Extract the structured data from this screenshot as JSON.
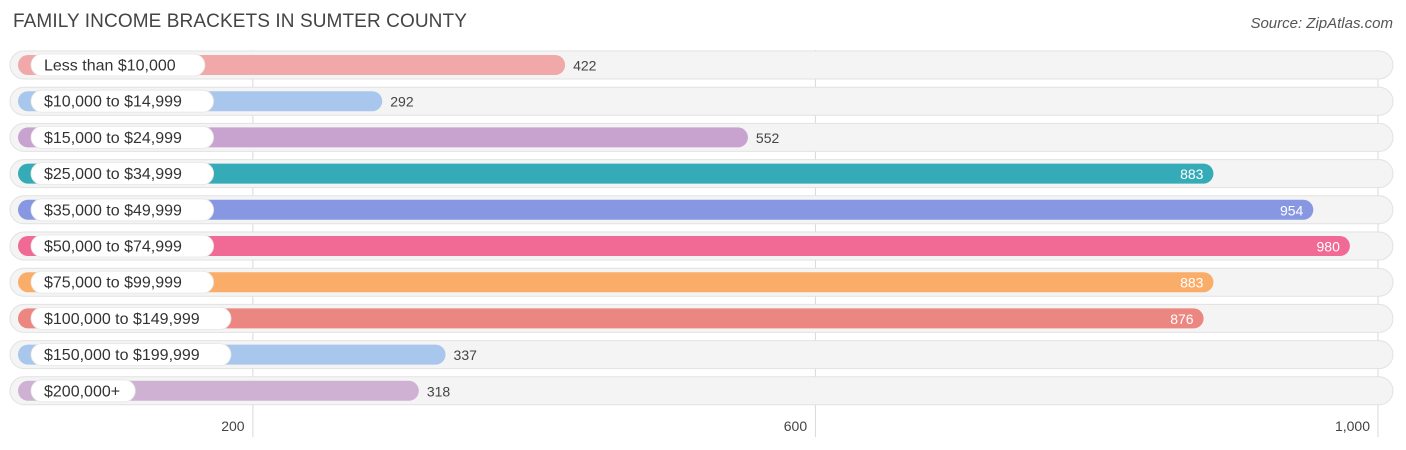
{
  "header": {
    "title": "FAMILY INCOME BRACKETS IN SUMTER COUNTY",
    "source": "Source: ZipAtlas.com"
  },
  "chart_data": {
    "type": "bar",
    "orientation": "horizontal",
    "title": "FAMILY INCOME BRACKETS IN SUMTER COUNTY",
    "xlabel": "",
    "ylabel": "",
    "xlim": [
      33,
      1000
    ],
    "grid": true,
    "categories": [
      "Less than $10,000",
      "$10,000 to $14,999",
      "$15,000 to $24,999",
      "$25,000 to $34,999",
      "$35,000 to $49,999",
      "$50,000 to $74,999",
      "$75,000 to $99,999",
      "$100,000 to $149,999",
      "$150,000 to $199,999",
      "$200,000+"
    ],
    "values": [
      422,
      292,
      552,
      883,
      954,
      980,
      883,
      876,
      337,
      318
    ],
    "colors": [
      "#f0a8a8",
      "#a9c6ec",
      "#c9a3d0",
      "#36abb8",
      "#8797e2",
      "#f06a95",
      "#f9ad68",
      "#ec8680",
      "#a9c6ec",
      "#ceb1d3"
    ],
    "ticks": [
      200,
      600,
      1000
    ],
    "tick_labels": [
      "200",
      "600",
      "1,000"
    ]
  }
}
